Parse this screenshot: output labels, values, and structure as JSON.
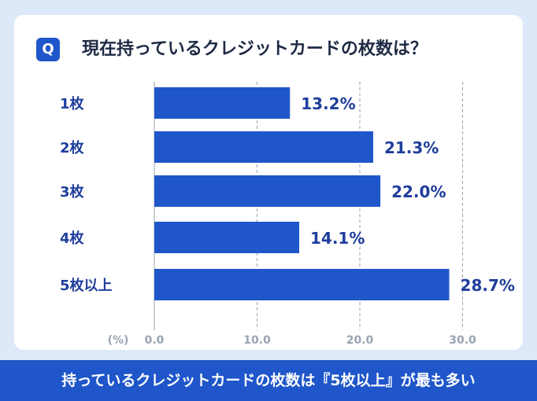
{
  "question": {
    "badge": "Q",
    "text": "現在持っているクレジットカードの枚数は？"
  },
  "footer": {
    "text": "持っているクレジットカードの枚数は『5枚以上』が最も多い"
  },
  "colors": {
    "bar": "#1f56c9",
    "label": "#1f3e9c",
    "grid": "#9aa3b2",
    "tick": "#9aa3b2"
  },
  "chart_data": {
    "type": "bar",
    "orientation": "horizontal",
    "title": "現在持っているクレジットカードの枚数は？",
    "categories": [
      "1枚",
      "2枚",
      "3枚",
      "4枚",
      "5枚以上"
    ],
    "values": [
      13.2,
      21.3,
      22.0,
      14.1,
      28.7
    ],
    "value_labels": [
      "13.2%",
      "21.3%",
      "22.0%",
      "14.1%",
      "28.7%"
    ],
    "xlabel": "(%)",
    "xlim": [
      0,
      30
    ],
    "xticks": [
      0,
      10,
      20,
      30
    ],
    "xtick_labels": [
      "0.0",
      "10.0",
      "20.0",
      "30.0"
    ],
    "grid": true
  }
}
